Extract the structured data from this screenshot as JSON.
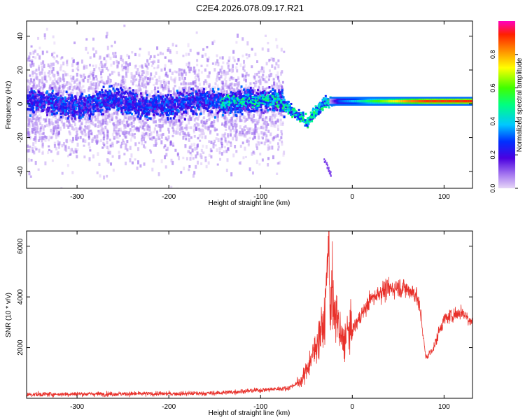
{
  "title": "C2E4.2026.078.09.17.R21",
  "colors": {
    "snr_line": "#e8302a",
    "axis": "#000000"
  },
  "chart_data": [
    {
      "type": "heatmap",
      "xlabel": "Height of straight line (km)",
      "ylabel": "Frequency (Hz)",
      "xlim": [
        -355,
        131
      ],
      "ylim": [
        -50,
        49
      ],
      "xticks": [
        -300,
        -200,
        -100,
        0,
        100
      ],
      "yticks": [
        -40,
        -20,
        0,
        20,
        40
      ],
      "colorbar": {
        "label": "Normalized spectral amplitude",
        "range": [
          0,
          1
        ],
        "ticks": [
          "0.0",
          "0.2",
          "0.4",
          "0.6",
          "0.8"
        ],
        "tick_values": [
          0.0,
          0.2,
          0.4,
          0.6,
          0.8
        ]
      }
    },
    {
      "type": "line",
      "xlabel": "Height of straight line (km)",
      "ylabel": "SNR (10 * v/v)",
      "xlim": [
        -355,
        131
      ],
      "ylim": [
        0,
        6600
      ],
      "xticks": [
        -300,
        -200,
        -100,
        0,
        100
      ],
      "yticks": [
        2000,
        4000,
        6000
      ],
      "series": [
        {
          "x": [
            -355,
            -300,
            -200,
            -150,
            -110,
            -90,
            -70,
            -55,
            -48,
            -42,
            -36,
            -30,
            -26,
            -24,
            -22,
            -20,
            -17,
            -14,
            -10,
            -5,
            0,
            10,
            20,
            30,
            40,
            50,
            60,
            70,
            75,
            80,
            85,
            90,
            95,
            100,
            110,
            120,
            131
          ],
          "y": [
            150,
            170,
            180,
            200,
            300,
            350,
            400,
            700,
            1300,
            1800,
            2500,
            3000,
            6500,
            3500,
            4500,
            3000,
            3500,
            2500,
            2200,
            2600,
            2700,
            3300,
            3900,
            4200,
            4300,
            4400,
            4300,
            4100,
            3200,
            1600,
            1800,
            2100,
            2700,
            3100,
            3300,
            3400,
            3000
          ]
        }
      ]
    }
  ]
}
